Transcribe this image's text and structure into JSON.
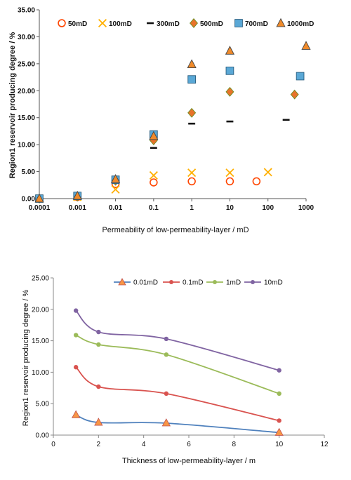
{
  "chart_data": [
    {
      "type": "scatter",
      "title": "",
      "xlabel": "Permeability of low-permeability-layer / mD",
      "ylabel": "Region1 reservoir producing degree / %",
      "xscale": "log",
      "xlim": [
        0.0001,
        1000
      ],
      "ylim": [
        0,
        35
      ],
      "x_ticks": [
        "0.0001",
        "0.001",
        "0.01",
        "0.1",
        "1",
        "10",
        "100",
        "1000"
      ],
      "y_ticks": [
        "0.00",
        "5.00",
        "10.00",
        "15.00",
        "20.00",
        "25.00",
        "30.00",
        "35.00"
      ],
      "grid": false,
      "legend_position": "top",
      "series": [
        {
          "name": "50mD",
          "color": "#ff4500",
          "marker": "circle",
          "points": [
            [
              0.0001,
              0.0
            ],
            [
              0.001,
              0.3
            ],
            [
              0.01,
              2.7
            ],
            [
              0.1,
              3.0
            ],
            [
              1,
              3.2
            ],
            [
              10,
              3.2
            ],
            [
              50,
              3.2
            ]
          ]
        },
        {
          "name": "100mD",
          "color": "#ffb000",
          "marker": "x",
          "points": [
            [
              0.0001,
              0.0
            ],
            [
              0.001,
              0.3
            ],
            [
              0.01,
              1.7
            ],
            [
              0.1,
              4.3
            ],
            [
              1,
              4.8
            ],
            [
              10,
              4.8
            ],
            [
              100,
              4.9
            ]
          ]
        },
        {
          "name": "300mD",
          "color": "#111111",
          "marker": "dash",
          "points": [
            [
              0.0001,
              0.0
            ],
            [
              0.001,
              0.4
            ],
            [
              0.01,
              3.4
            ],
            [
              0.1,
              9.4
            ],
            [
              1,
              13.9
            ],
            [
              10,
              14.3
            ],
            [
              300,
              14.6
            ]
          ]
        },
        {
          "name": "500mD",
          "color": "#e8732a",
          "marker": "diamond",
          "points": [
            [
              0.0001,
              0.0
            ],
            [
              0.001,
              0.4
            ],
            [
              0.01,
              3.3
            ],
            [
              0.1,
              10.8
            ],
            [
              1,
              15.9
            ],
            [
              10,
              19.8
            ],
            [
              500,
              19.3
            ]
          ]
        },
        {
          "name": "700mD",
          "color": "#5aa8d6",
          "marker": "square",
          "points": [
            [
              0.0001,
              0.0
            ],
            [
              0.001,
              0.5
            ],
            [
              0.01,
              3.5
            ],
            [
              0.1,
              11.9
            ],
            [
              1,
              22.1
            ],
            [
              10,
              23.7
            ],
            [
              700,
              22.7
            ]
          ]
        },
        {
          "name": "1000mD",
          "color": "#f08a2a",
          "marker": "triangle",
          "points": [
            [
              0.0001,
              0.0
            ],
            [
              0.001,
              0.5
            ],
            [
              0.01,
              3.6
            ],
            [
              0.1,
              11.6
            ],
            [
              1,
              24.9
            ],
            [
              10,
              27.4
            ],
            [
              1000,
              28.3
            ]
          ]
        }
      ]
    },
    {
      "type": "line",
      "title": "",
      "xlabel": "Thickness of low-permeability-layer / m",
      "ylabel": "Region1 reservoir producing degree / %",
      "xlim": [
        0,
        12
      ],
      "ylim": [
        0,
        25
      ],
      "x_ticks": [
        "0",
        "2",
        "4",
        "6",
        "8",
        "10",
        "12"
      ],
      "y_ticks": [
        "0.00",
        "5.00",
        "10.00",
        "15.00",
        "20.00",
        "25.00"
      ],
      "grid": false,
      "legend_position": "top",
      "series": [
        {
          "name": "0.01mD",
          "color": "#4f81bd",
          "marker": "triangle",
          "marker_color": "#f79646",
          "x": [
            1,
            2,
            5,
            10
          ],
          "y": [
            3.2,
            2.0,
            1.9,
            0.4
          ]
        },
        {
          "name": "0.1mD",
          "color": "#d9534f",
          "marker": "circle",
          "x": [
            1,
            2,
            5,
            10
          ],
          "y": [
            10.8,
            7.7,
            6.6,
            2.3
          ]
        },
        {
          "name": "1mD",
          "color": "#9bbb59",
          "marker": "circle",
          "x": [
            1,
            2,
            5,
            10
          ],
          "y": [
            15.9,
            14.4,
            12.8,
            6.6
          ]
        },
        {
          "name": "10mD",
          "color": "#8064a2",
          "marker": "circle",
          "x": [
            1,
            2,
            5,
            10
          ],
          "y": [
            19.8,
            16.4,
            15.3,
            10.3
          ]
        }
      ]
    }
  ]
}
